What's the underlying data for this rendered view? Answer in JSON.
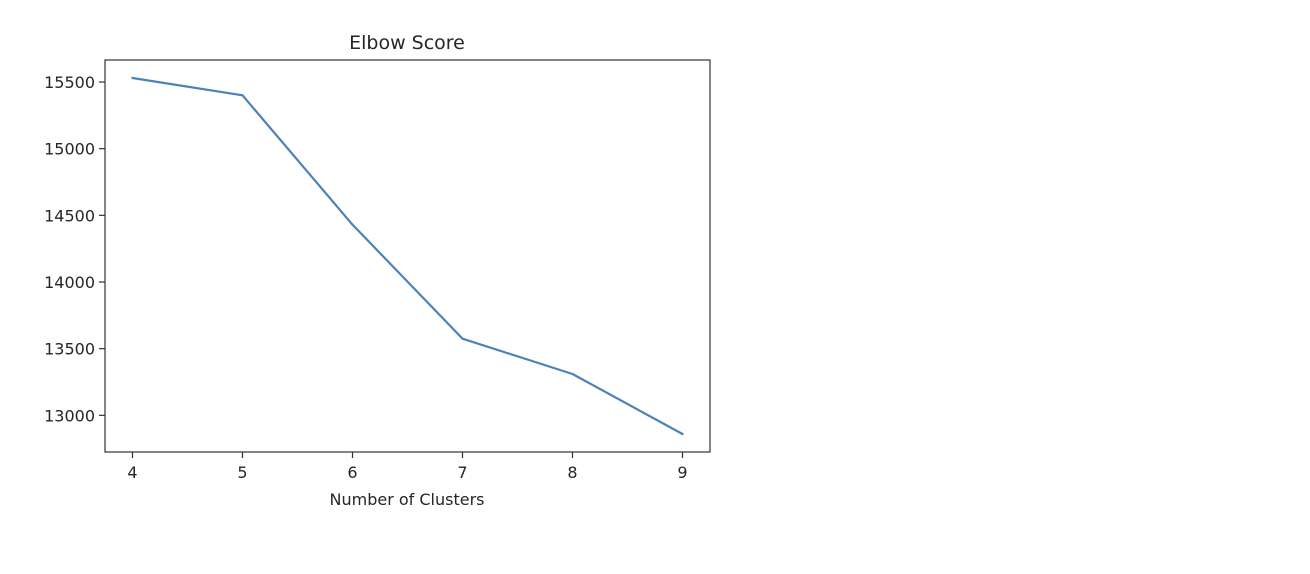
{
  "chart_data": {
    "type": "line",
    "title": "Elbow Score",
    "xlabel": "Number of Clusters",
    "ylabel": "",
    "x": [
      4,
      5,
      6,
      7,
      8,
      9
    ],
    "series": [
      {
        "values": [
          15530,
          15400,
          14430,
          13575,
          13310,
          12860
        ],
        "color": "#4c82b8"
      }
    ],
    "xticks": [
      "4",
      "5",
      "6",
      "7",
      "8",
      "9"
    ],
    "yticks": [
      "13000",
      "13500",
      "14000",
      "14500",
      "15000",
      "15500"
    ],
    "ytick_values": [
      13000,
      13500,
      14000,
      14500,
      15000,
      15500
    ],
    "xlim": [
      3.75,
      9.25
    ],
    "ylim": [
      12725,
      15665
    ],
    "grid": false,
    "legend": "none"
  }
}
